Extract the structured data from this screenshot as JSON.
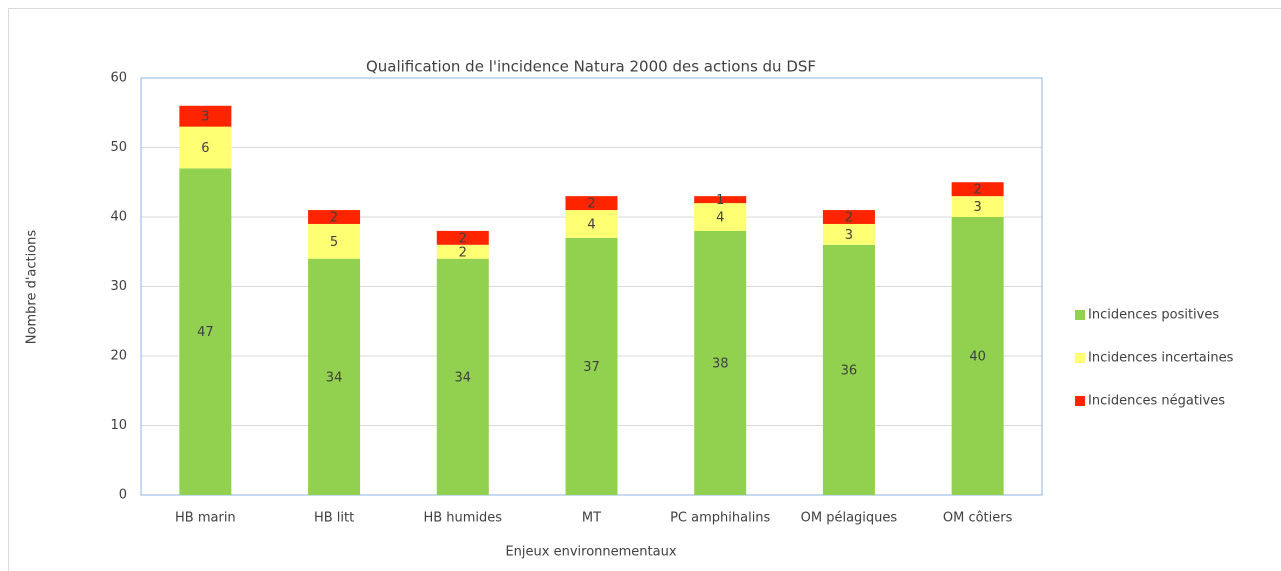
{
  "chart_data": {
    "type": "stacked-bar",
    "title": "Qualification de l'incidence Natura 2000 des actions du DSF",
    "x_label": "Enjeux environnementaux",
    "y_label": "Nombre d'actions",
    "categories": [
      "HB marin",
      "HB litt",
      "HB humides",
      "MT",
      "PC amphihalins",
      "OM pélagiques",
      "OM côtiers"
    ],
    "series": [
      {
        "name": "Incidences positives",
        "color": "#92d050",
        "values": [
          47,
          34,
          34,
          37,
          38,
          36,
          40
        ]
      },
      {
        "name": "Incidences incertaines",
        "color": "#ffff73",
        "values": [
          6,
          5,
          2,
          4,
          4,
          3,
          3
        ]
      },
      {
        "name": "Incidences négatives",
        "color": "#ff2400",
        "values": [
          3,
          2,
          2,
          2,
          1,
          2,
          2
        ]
      }
    ],
    "ylim": [
      0,
      60
    ],
    "yticks": [
      0,
      10,
      20,
      30,
      40,
      50,
      60
    ],
    "grid": true,
    "legend": "right"
  }
}
